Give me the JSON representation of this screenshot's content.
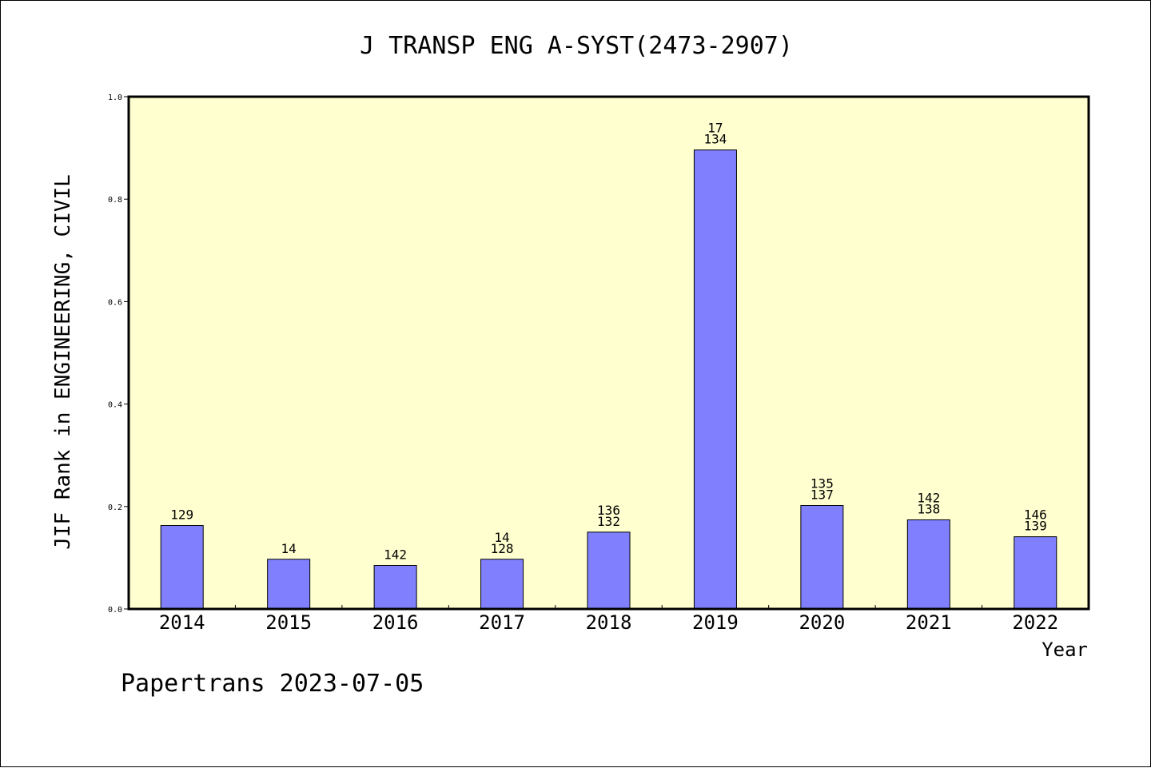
{
  "chart_data": {
    "type": "bar",
    "title": "J TRANSP ENG A-SYST(2473-2907)",
    "xlabel": "Year",
    "ylabel": "JIF Rank in ENGINEERING, CIVIL",
    "ylim": [
      0,
      1.0
    ],
    "yticks": [
      "0.0",
      "0.2",
      "0.4",
      "0.6",
      "0.8",
      "1.0"
    ],
    "categories": [
      "2014",
      "2015",
      "2016",
      "2017",
      "2018",
      "2019",
      "2020",
      "2021",
      "2022"
    ],
    "values": [
      0.163,
      0.097,
      0.085,
      0.097,
      0.15,
      0.896,
      0.202,
      0.174,
      0.141
    ],
    "bar_labels": [
      [
        "129"
      ],
      [
        "14"
      ],
      [
        "142"
      ],
      [
        "14",
        "128"
      ],
      [
        "136",
        "132"
      ],
      [
        "17",
        "134"
      ],
      [
        "135",
        "137"
      ],
      [
        "142",
        "138"
      ],
      [
        "146",
        "139"
      ]
    ],
    "grid": false,
    "colors": {
      "plot_background": "#ffffd0",
      "bar": "#8080ff"
    }
  },
  "footer": "Papertrans 2023-07-05"
}
